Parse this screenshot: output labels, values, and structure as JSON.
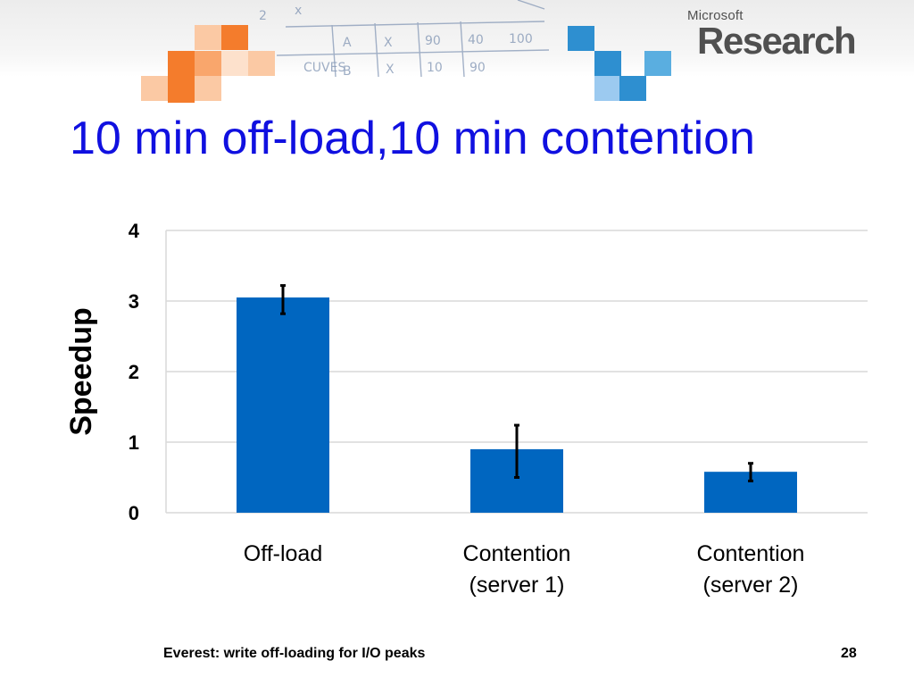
{
  "slide": {
    "title": "10 min off-load,10 min contention",
    "footer": "Everest: write off-loading for I/O peaks",
    "page_number": "28"
  },
  "logo": {
    "small": "Microsoft",
    "large": "Research"
  },
  "colors": {
    "title": "#1010e0",
    "bar": "#0066c0",
    "gridline": "#d9d9d9",
    "error_bar": "#000000",
    "tiles_orange": [
      "#f47c2c",
      "#f9a66c",
      "#fbc9a4",
      "#fde1cc"
    ],
    "tiles_blue": [
      "#2e8fd0",
      "#5aaee0",
      "#9ccaf0"
    ]
  },
  "chart_data": {
    "type": "bar",
    "title": "",
    "ylabel": "Speedup",
    "xlabel": "",
    "categories": [
      "Off-load",
      "Contention (server 1)",
      "Contention (server 2)"
    ],
    "category_lines": [
      [
        "Off-load"
      ],
      [
        "Contention",
        "(server 1)"
      ],
      [
        "Contention",
        "(server 2)"
      ]
    ],
    "values": [
      3.05,
      0.9,
      0.58
    ],
    "error_low": [
      2.82,
      0.5,
      0.45
    ],
    "error_high": [
      3.22,
      1.24,
      0.7
    ],
    "ylim": [
      0,
      4
    ],
    "yticks": [
      0,
      1,
      2,
      3,
      4
    ],
    "grid": true,
    "legend": "none"
  }
}
